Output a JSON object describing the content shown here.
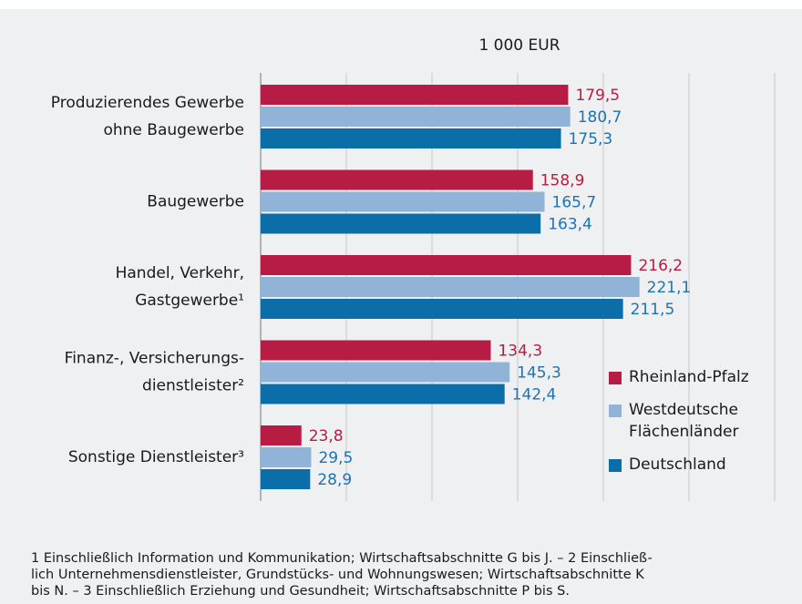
{
  "chart_data": {
    "type": "bar",
    "orientation": "horizontal",
    "unit_label": "1 000 EUR",
    "categories": [
      [
        "Produzierendes Gewerbe",
        "ohne Baugewerbe"
      ],
      [
        "Baugewerbe"
      ],
      [
        "Handel, Verkehr,",
        "Gastgewerbe¹"
      ],
      [
        "Finanz-, Versicherungs-",
        "dienstleister²"
      ],
      [
        "Sonstige Dienstleister³"
      ]
    ],
    "series": [
      {
        "name": "Rheinland-Pfalz",
        "color": "#b71c44",
        "label_color": "#b71c44",
        "values": [
          179.5,
          158.9,
          216.2,
          134.3,
          23.8
        ],
        "value_labels": [
          "179,5",
          "158,9",
          "216,2",
          "134,3",
          "23,8"
        ]
      },
      {
        "name": "Westdeutsche Flächenländer",
        "color": "#91b3d8",
        "label_color": "#1f72b3",
        "values": [
          180.7,
          165.7,
          221.1,
          145.3,
          29.5
        ],
        "value_labels": [
          "180,7",
          "165,7",
          "221,1",
          "145,3",
          "29,5"
        ]
      },
      {
        "name": "Deutschland",
        "color": "#0b6ea8",
        "label_color": "#1f72b3",
        "values": [
          175.3,
          163.4,
          211.5,
          142.4,
          28.9
        ],
        "value_labels": [
          "175,3",
          "163,4",
          "211,5",
          "142,4",
          "28,9"
        ]
      }
    ],
    "xlim": [
      0,
      300
    ],
    "xticks": [
      0,
      50,
      100,
      150,
      200,
      250,
      300
    ],
    "grid": true,
    "footnote": [
      "1 Einschließlich Information und Kommunikation; Wirtschaftsabschnitte G bis J. – 2 Einschließ-",
      "lich Unternehmensdienstleister, Grundstücks- und Wohnungswesen; Wirtschaftsabschnitte K",
      "bis N. – 3 Einschließlich Erziehung und Gesundheit; Wirtschaftsabschnitte P bis S."
    ]
  }
}
